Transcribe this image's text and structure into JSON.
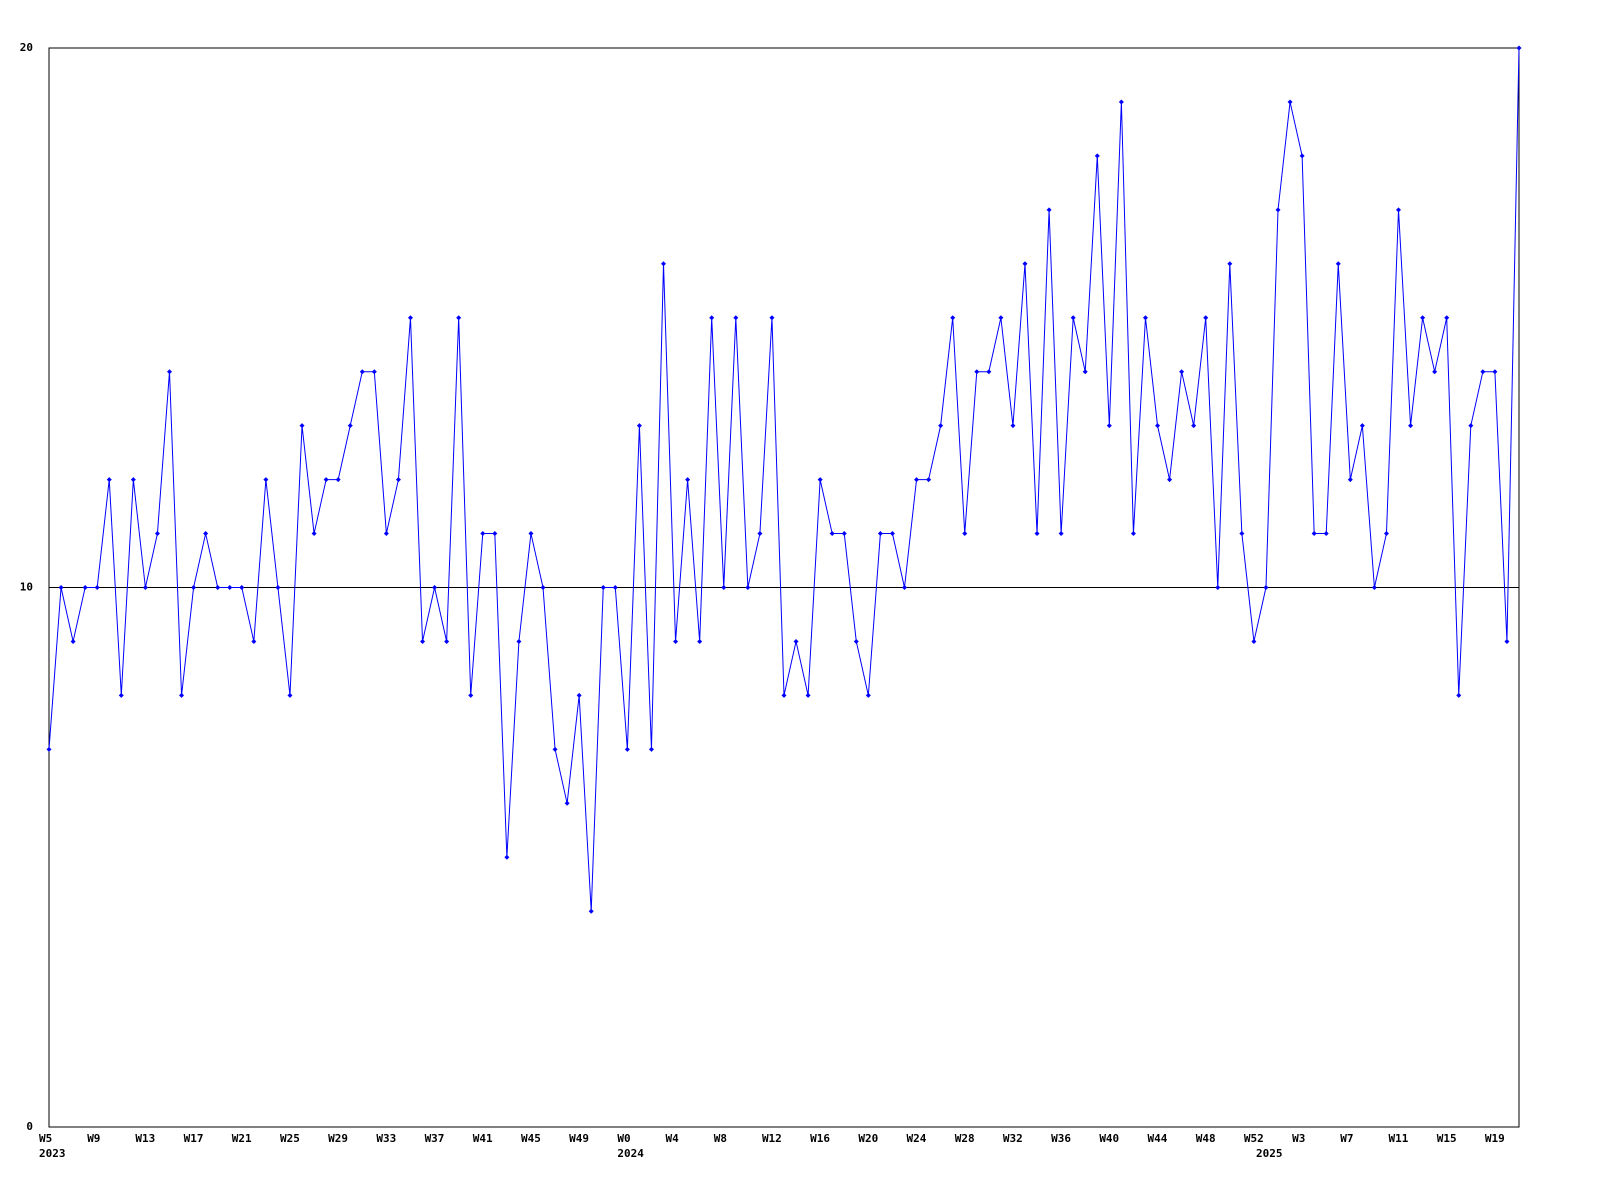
{
  "chart_data": {
    "type": "line",
    "categories": [
      "W5",
      null,
      null,
      null,
      "W9",
      null,
      null,
      null,
      "W13",
      null,
      null,
      null,
      "W17",
      null,
      null,
      null,
      "W21",
      null,
      null,
      null,
      "W25",
      null,
      null,
      null,
      "W29",
      null,
      null,
      null,
      "W33",
      null,
      null,
      null,
      "W37",
      null,
      null,
      null,
      "W41",
      null,
      null,
      null,
      "W45",
      null,
      null,
      null,
      "W49",
      null,
      null,
      null,
      "W0",
      null,
      null,
      null,
      "W4",
      null,
      null,
      null,
      "W8",
      null,
      null,
      null,
      "W12",
      null,
      null,
      null,
      "W16",
      null,
      null,
      null,
      "W20",
      null,
      null,
      null,
      "W24",
      null,
      null,
      null,
      "W28",
      null,
      null,
      null,
      "W32",
      null,
      null,
      null,
      "W36",
      null,
      null,
      null,
      "W40",
      null,
      null,
      null,
      "W44",
      null,
      null,
      null,
      "W48",
      null,
      null,
      null,
      "W52",
      null,
      null,
      null,
      "W3",
      null,
      null,
      null,
      "W7",
      null,
      null,
      null,
      "W11",
      null,
      null,
      null,
      "W15",
      null,
      null,
      null,
      "W19",
      null,
      null
    ],
    "years": [
      "2023",
      null,
      null,
      null,
      null,
      null,
      null,
      null,
      null,
      null,
      null,
      null,
      null,
      null,
      null,
      null,
      null,
      null,
      null,
      null,
      null,
      null,
      null,
      null,
      null,
      null,
      null,
      null,
      null,
      null,
      null,
      null,
      null,
      null,
      null,
      null,
      null,
      null,
      null,
      null,
      null,
      null,
      null,
      null,
      null,
      null,
      null,
      null,
      "2024",
      null,
      null,
      null,
      null,
      null,
      null,
      null,
      null,
      null,
      null,
      null,
      null,
      null,
      null,
      null,
      null,
      null,
      null,
      null,
      null,
      null,
      null,
      null,
      null,
      null,
      null,
      null,
      null,
      null,
      null,
      null,
      null,
      null,
      null,
      null,
      null,
      null,
      null,
      null,
      null,
      null,
      null,
      null,
      null,
      null,
      null,
      null,
      null,
      null,
      null,
      null,
      null,
      "2025",
      null,
      null,
      null,
      null,
      null,
      null,
      null,
      null,
      null,
      null,
      null,
      null,
      null,
      null,
      null,
      null,
      null,
      null,
      null,
      null,
      null
    ],
    "series": [
      {
        "color": "#0000ff",
        "values": [
          7,
          10,
          9,
          10,
          10,
          12,
          8,
          12,
          10,
          11,
          14,
          8,
          10,
          11,
          10,
          10,
          10,
          9,
          12,
          10,
          8,
          13,
          11,
          12,
          12,
          13,
          14,
          14,
          11,
          12,
          15,
          9,
          10,
          9,
          15,
          8,
          11,
          11,
          5,
          9,
          11,
          10,
          7,
          6,
          8,
          4,
          10,
          10,
          7,
          13,
          7,
          16,
          9,
          12,
          9,
          15,
          10,
          15,
          10,
          11,
          15,
          8,
          9,
          8,
          12,
          11,
          11,
          9,
          8,
          11,
          11,
          10,
          12,
          12,
          13,
          15,
          11,
          14,
          14,
          15,
          13,
          16,
          11,
          17,
          11,
          15,
          14,
          18,
          13,
          19,
          11,
          15,
          13,
          12,
          14,
          13,
          15,
          10,
          16,
          11,
          9,
          10,
          17,
          19,
          18,
          11,
          11,
          16,
          12,
          13,
          10,
          11,
          17,
          13,
          15,
          14,
          15,
          8,
          13,
          14,
          14,
          9,
          20
        ]
      }
    ],
    "ylim": [
      0,
      20
    ],
    "yticks": [
      0,
      10,
      20
    ],
    "grid": true
  }
}
